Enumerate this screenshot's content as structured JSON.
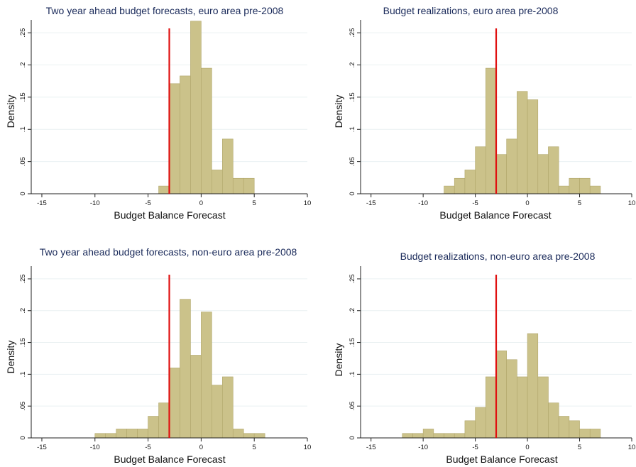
{
  "chart_data": [
    {
      "type": "bar",
      "title": "Two year ahead budget forecasts, euro area pre-2008",
      "xlabel": "Budget Balance Forecast",
      "ylabel": "Density",
      "xlim": [
        -16,
        10
      ],
      "ylim": [
        0,
        0.27
      ],
      "xticks": [
        -15,
        -10,
        -5,
        0,
        5,
        10
      ],
      "xtick_labels": [
        "-15",
        "-10",
        "-5",
        "0",
        "5",
        "10"
      ],
      "yticks": [
        0,
        0.05,
        0.1,
        0.15,
        0.2,
        0.25
      ],
      "ytick_labels": [
        "0",
        ".05",
        ".1",
        ".15",
        ".2",
        ".25"
      ],
      "bin_width": 1,
      "bins": [
        {
          "x0": -4,
          "value": 0.012
        },
        {
          "x0": -3,
          "value": 0.171
        },
        {
          "x0": -2,
          "value": 0.183
        },
        {
          "x0": -1,
          "value": 0.268
        },
        {
          "x0": 0,
          "value": 0.195
        },
        {
          "x0": 1,
          "value": 0.037
        },
        {
          "x0": 2,
          "value": 0.085
        },
        {
          "x0": 3,
          "value": 0.024
        },
        {
          "x0": 4,
          "value": 0.024
        }
      ],
      "reference_line_x": -3,
      "colors": {
        "bar_fill": "#cbc28a",
        "bar_edge": "#b0a66a",
        "ref_line": "#e01010"
      }
    },
    {
      "type": "bar",
      "title": "Budget realizations, euro area pre-2008",
      "xlabel": "Budget Balance Forecast",
      "ylabel": "Density",
      "xlim": [
        -16,
        10
      ],
      "ylim": [
        0,
        0.27
      ],
      "xticks": [
        -15,
        -10,
        -5,
        0,
        5,
        10
      ],
      "xtick_labels": [
        "-15",
        "-10",
        "-5",
        "0",
        "5",
        "10"
      ],
      "yticks": [
        0,
        0.05,
        0.1,
        0.15,
        0.2,
        0.25
      ],
      "ytick_labels": [
        "0",
        ".05",
        ".1",
        ".15",
        ".2",
        ".25"
      ],
      "bin_width": 1,
      "bins": [
        {
          "x0": -8,
          "value": 0.012
        },
        {
          "x0": -7,
          "value": 0.024
        },
        {
          "x0": -6,
          "value": 0.037
        },
        {
          "x0": -5,
          "value": 0.073
        },
        {
          "x0": -4,
          "value": 0.195
        },
        {
          "x0": -3,
          "value": 0.061
        },
        {
          "x0": -2,
          "value": 0.085
        },
        {
          "x0": -1,
          "value": 0.159
        },
        {
          "x0": 0,
          "value": 0.146
        },
        {
          "x0": 1,
          "value": 0.061
        },
        {
          "x0": 2,
          "value": 0.073
        },
        {
          "x0": 3,
          "value": 0.012
        },
        {
          "x0": 4,
          "value": 0.024
        },
        {
          "x0": 5,
          "value": 0.024
        },
        {
          "x0": 6,
          "value": 0.012
        }
      ],
      "reference_line_x": -3,
      "colors": {
        "bar_fill": "#cbc28a",
        "bar_edge": "#b0a66a",
        "ref_line": "#e01010"
      }
    },
    {
      "type": "bar",
      "title": "Two year ahead budget forecasts, non-euro area pre-2008",
      "xlabel": "Budget Balance Forecast",
      "ylabel": "Density",
      "xlim": [
        -16,
        10
      ],
      "ylim": [
        0,
        0.27
      ],
      "xticks": [
        -15,
        -10,
        -5,
        0,
        5,
        10
      ],
      "xtick_labels": [
        "-15",
        "-10",
        "-5",
        "0",
        "5",
        "10"
      ],
      "yticks": [
        0,
        0.05,
        0.1,
        0.15,
        0.2,
        0.25
      ],
      "ytick_labels": [
        "0",
        ".05",
        ".1",
        ".15",
        ".2",
        ".25"
      ],
      "bin_width": 1,
      "bins": [
        {
          "x0": -10,
          "value": 0.007
        },
        {
          "x0": -9,
          "value": 0.007
        },
        {
          "x0": -8,
          "value": 0.014
        },
        {
          "x0": -7,
          "value": 0.014
        },
        {
          "x0": -6,
          "value": 0.014
        },
        {
          "x0": -5,
          "value": 0.034
        },
        {
          "x0": -4,
          "value": 0.055
        },
        {
          "x0": -3,
          "value": 0.11
        },
        {
          "x0": -2,
          "value": 0.218
        },
        {
          "x0": -1,
          "value": 0.13
        },
        {
          "x0": 0,
          "value": 0.198
        },
        {
          "x0": 1,
          "value": 0.083
        },
        {
          "x0": 2,
          "value": 0.096
        },
        {
          "x0": 3,
          "value": 0.014
        },
        {
          "x0": 4,
          "value": 0.007
        },
        {
          "x0": 5,
          "value": 0.007
        }
      ],
      "reference_line_x": -3,
      "colors": {
        "bar_fill": "#cbc28a",
        "bar_edge": "#b0a66a",
        "ref_line": "#e01010"
      }
    },
    {
      "type": "bar",
      "title": "Budget realizations, non-euro area pre-2008",
      "xlabel": "Budget Balance Forecast",
      "ylabel": "Density",
      "xlim": [
        -16,
        10
      ],
      "ylim": [
        0,
        0.27
      ],
      "xticks": [
        -15,
        -10,
        -5,
        0,
        5,
        10
      ],
      "xtick_labels": [
        "-15",
        "-10",
        "-5",
        "0",
        "5",
        "10"
      ],
      "yticks": [
        0,
        0.05,
        0.1,
        0.15,
        0.2,
        0.25
      ],
      "ytick_labels": [
        "0",
        ".05",
        ".1",
        ".15",
        ".2",
        ".25"
      ],
      "bin_width": 1,
      "bins": [
        {
          "x0": -12,
          "value": 0.007
        },
        {
          "x0": -11,
          "value": 0.007
        },
        {
          "x0": -10,
          "value": 0.014
        },
        {
          "x0": -9,
          "value": 0.007
        },
        {
          "x0": -8,
          "value": 0.007
        },
        {
          "x0": -7,
          "value": 0.007
        },
        {
          "x0": -6,
          "value": 0.027
        },
        {
          "x0": -5,
          "value": 0.048
        },
        {
          "x0": -4,
          "value": 0.096
        },
        {
          "x0": -3,
          "value": 0.137
        },
        {
          "x0": -2,
          "value": 0.123
        },
        {
          "x0": -1,
          "value": 0.096
        },
        {
          "x0": 0,
          "value": 0.164
        },
        {
          "x0": 1,
          "value": 0.096
        },
        {
          "x0": 2,
          "value": 0.055
        },
        {
          "x0": 3,
          "value": 0.034
        },
        {
          "x0": 4,
          "value": 0.027
        },
        {
          "x0": 5,
          "value": 0.014
        },
        {
          "x0": 6,
          "value": 0.014
        }
      ],
      "reference_line_x": -3,
      "colors": {
        "bar_fill": "#cbc28a",
        "bar_edge": "#b0a66a",
        "ref_line": "#e01010"
      }
    }
  ]
}
